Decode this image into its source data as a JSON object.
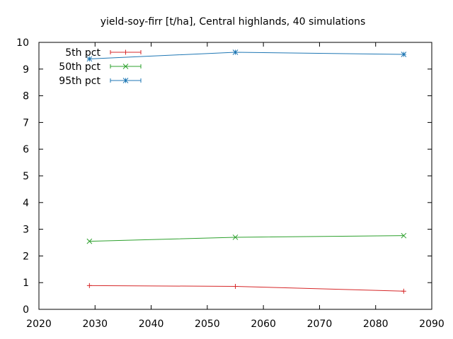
{
  "chart_data": {
    "type": "line",
    "title": "yield-soy-firr [t/ha], Central highlands, 40 simulations",
    "xlabel": "",
    "ylabel": "",
    "xlim": [
      2020,
      2090
    ],
    "ylim": [
      0,
      10
    ],
    "xticks": [
      "2020",
      "2030",
      "2040",
      "2050",
      "2060",
      "2070",
      "2080",
      "2090"
    ],
    "yticks": [
      "0",
      "1",
      "2",
      "3",
      "4",
      "5",
      "6",
      "7",
      "8",
      "9",
      "10"
    ],
    "grid": false,
    "legend_position": "top-left",
    "error_bars": true,
    "series": [
      {
        "name": "5th pct",
        "color": "#d62728",
        "marker": "plus",
        "x": [
          2029,
          2055,
          2085
        ],
        "y": [
          0.89,
          0.86,
          0.68
        ]
      },
      {
        "name": "50th pct",
        "color": "#2ca02c",
        "marker": "cross",
        "x": [
          2029,
          2055,
          2085
        ],
        "y": [
          2.55,
          2.7,
          2.76
        ]
      },
      {
        "name": "95th pct",
        "color": "#1f77b4",
        "marker": "star",
        "x": [
          2029,
          2055,
          2085
        ],
        "y": [
          9.38,
          9.63,
          9.55
        ]
      }
    ]
  }
}
